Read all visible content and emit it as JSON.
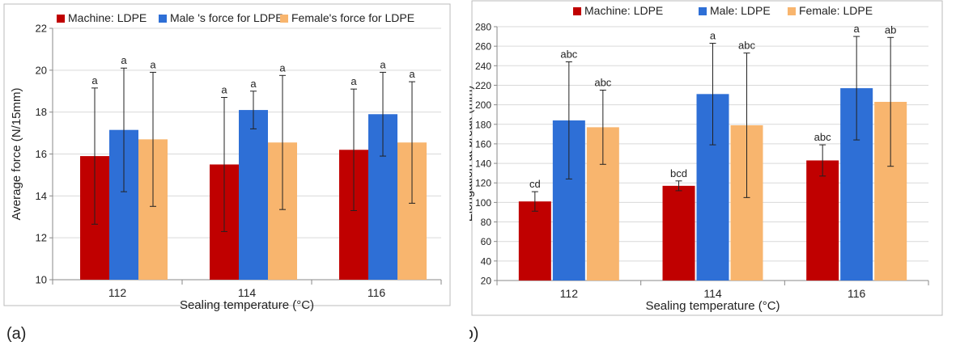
{
  "colors": {
    "machine": "#C00000",
    "male": "#2E6FD6",
    "female": "#F8B56E",
    "frame": "#bbbbbb",
    "grid": "#d9d9d9"
  },
  "panel_labels": [
    "(a)",
    "(b)"
  ],
  "chart_data": [
    {
      "type": "bar",
      "xlabel": "Sealing temperature (°C)",
      "ylabel": "Average force (N/15mm)",
      "ylim": [
        10,
        22
      ],
      "yticks": [
        10,
        12,
        14,
        16,
        18,
        20,
        22
      ],
      "legend_position": "top",
      "categories": [
        "112",
        "114",
        "116"
      ],
      "series": [
        {
          "name": "Machine:  LDPE",
          "color": "#C00000",
          "values": [
            15.9,
            15.5,
            16.2
          ],
          "error": [
            3.25,
            3.2,
            2.9
          ],
          "labels": [
            "a",
            "a",
            "a"
          ]
        },
        {
          "name": "Male 's force for LDPE",
          "color": "#2E6FD6",
          "values": [
            17.15,
            18.1,
            17.9
          ],
          "error": [
            2.95,
            0.9,
            2.0
          ],
          "labels": [
            "a",
            "a",
            "a"
          ]
        },
        {
          "name": "Female's force for LDPE",
          "color": "#F8B56E",
          "values": [
            16.7,
            16.55,
            16.55
          ],
          "error": [
            3.2,
            3.2,
            2.9
          ],
          "labels": [
            "a",
            "a",
            "a"
          ]
        }
      ]
    },
    {
      "type": "bar",
      "xlabel": "Sealing temperature (°C)",
      "ylabel": "Elongation at break (mm)",
      "ylim": [
        20,
        280
      ],
      "yticks": [
        20,
        40,
        60,
        80,
        100,
        120,
        140,
        160,
        180,
        200,
        220,
        240,
        260,
        280
      ],
      "legend_position": "top",
      "categories": [
        "112",
        "114",
        "116"
      ],
      "series": [
        {
          "name": "Machine: LDPE",
          "color": "#C00000",
          "values": [
            101,
            117,
            143
          ],
          "error": [
            10,
            5,
            16
          ],
          "labels": [
            "cd",
            "bcd",
            "abc"
          ]
        },
        {
          "name": "Male: LDPE",
          "color": "#2E6FD6",
          "values": [
            184,
            211,
            217
          ],
          "error": [
            60,
            52,
            53
          ],
          "labels": [
            "abc",
            "a",
            "a"
          ]
        },
        {
          "name": "Female: LDPE",
          "color": "#F8B56E",
          "values": [
            177,
            179,
            203
          ],
          "error": [
            38,
            74,
            66
          ],
          "labels": [
            "abc",
            "abc",
            "ab"
          ]
        }
      ]
    }
  ]
}
